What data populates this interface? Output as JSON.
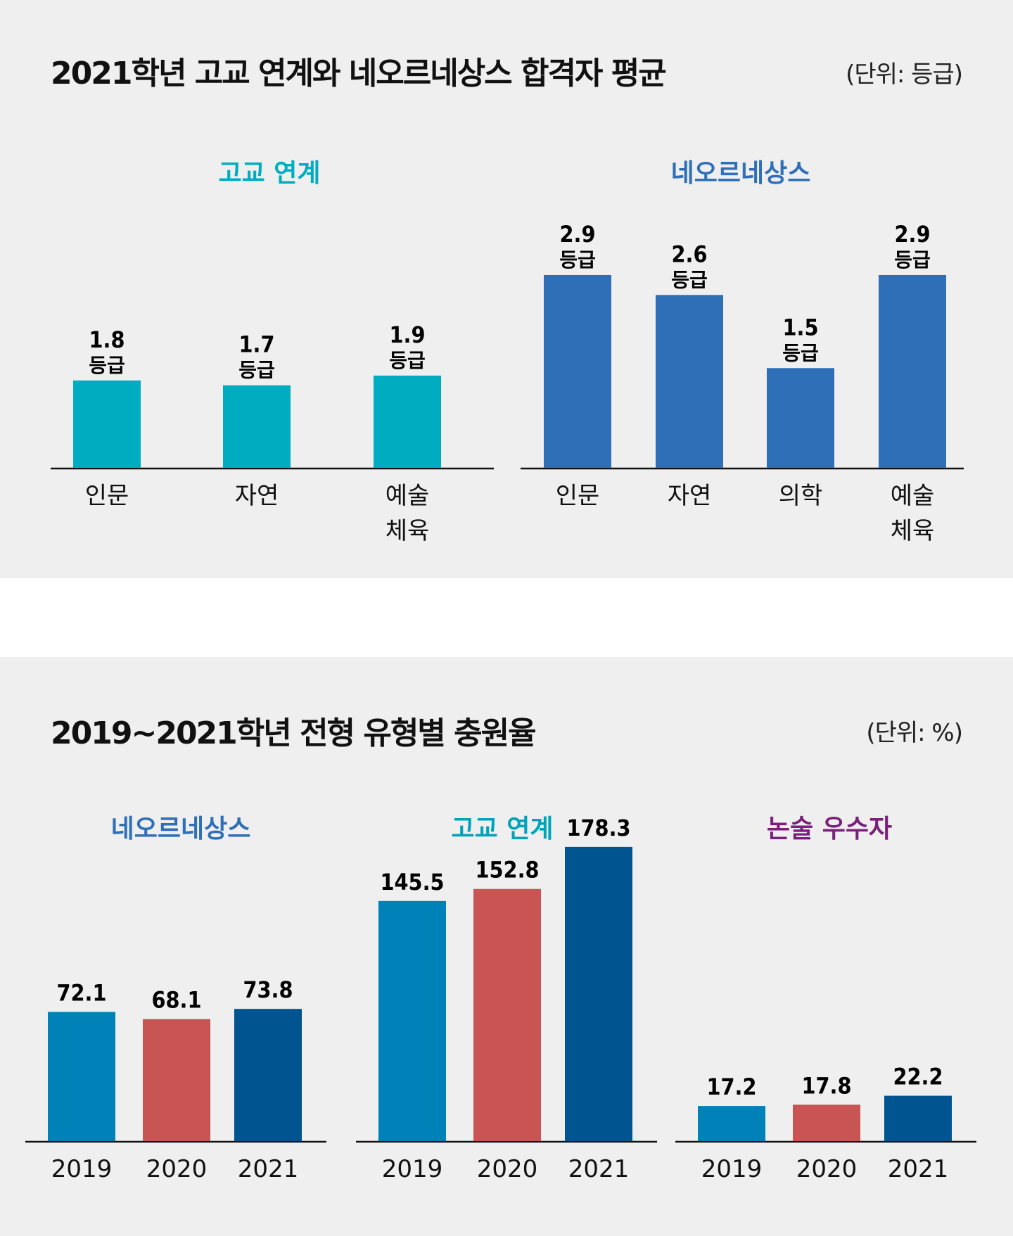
{
  "panel1": {
    "title": "2021학년 고교 연계와 네오르네상스 합격자 평균",
    "unit": "(단위: 등급)",
    "grade_suffix": "등급",
    "colors": {
      "left": "#00adc0",
      "right": "#2f6fb8"
    }
  },
  "panel2": {
    "title": "2019~2021학년 전형 유형별 충원율",
    "unit": "(단위: %)",
    "colors": {
      "c2019": "#0081b7",
      "c2020": "#c85454",
      "c2021": "#005591",
      "sub1": "#2f6fb8",
      "sub2": "#00a3b8",
      "sub3": "#7a1f7a"
    }
  },
  "chart_data": [
    {
      "type": "bar",
      "title": "고교 연계",
      "categories": [
        [
          "인문"
        ],
        [
          "자연"
        ],
        [
          "예술",
          "체육"
        ]
      ],
      "values": [
        1.8,
        1.7,
        1.9
      ],
      "value_labels": [
        "1.8",
        "1.7",
        "1.9"
      ],
      "unit": "등급"
    },
    {
      "type": "bar",
      "title": "네오르네상스",
      "categories": [
        [
          "인문"
        ],
        [
          "자연"
        ],
        [
          "의학"
        ],
        [
          "예술",
          "체육"
        ]
      ],
      "values": [
        2.9,
        2.6,
        1.5,
        2.9
      ],
      "value_labels": [
        "2.9",
        "2.6",
        "1.5",
        "2.9"
      ],
      "unit": "등급"
    },
    {
      "type": "bar",
      "title": "네오르네상스",
      "categories": [
        "2019",
        "2020",
        "2021"
      ],
      "values": [
        72.1,
        68.1,
        73.8
      ],
      "value_labels": [
        "72.1",
        "68.1",
        "73.8"
      ],
      "unit": "%"
    },
    {
      "type": "bar",
      "title": "고교 연계",
      "categories": [
        "2019",
        "2020",
        "2021"
      ],
      "values": [
        145.5,
        152.8,
        178.3
      ],
      "value_labels": [
        "145.5",
        "152.8",
        "178.3"
      ],
      "unit": "%"
    },
    {
      "type": "bar",
      "title": "논술 우수자",
      "categories": [
        "2019",
        "2020",
        "2021"
      ],
      "values": [
        17.2,
        17.8,
        22.2
      ],
      "value_labels": [
        "17.2",
        "17.8",
        "22.2"
      ],
      "unit": "%"
    }
  ]
}
